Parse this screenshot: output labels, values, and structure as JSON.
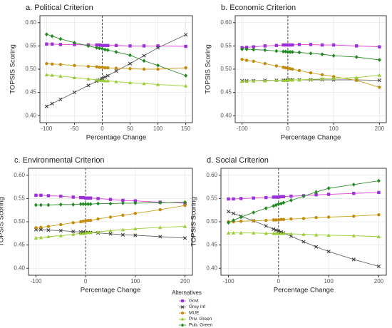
{
  "chart_data": [
    {
      "type": "line",
      "title": "a. Political Criterion",
      "x_label": "Percentage Change",
      "y_label": "TOPSIS Scoring",
      "x": [
        -100,
        -90,
        -75,
        -50,
        -25,
        -10,
        -5,
        0,
        5,
        10,
        25,
        50,
        75,
        100,
        150
      ],
      "xlim": [
        -112,
        162
      ],
      "xticks": [
        -100,
        -50,
        0,
        50,
        100,
        150
      ],
      "ylim": [
        0.385,
        0.615
      ],
      "yticks": [
        {
          "value": 0.4,
          "label": "0.40"
        },
        {
          "value": 0.45,
          "label": "0.45"
        },
        {
          "value": 0.5,
          "label": "0.50"
        },
        {
          "value": 0.55,
          "label": "0.55"
        },
        {
          "value": 0.6,
          "label": "0.60"
        }
      ],
      "grid": true,
      "vline": 0,
      "series": [
        {
          "values": [
            0.554,
            0.554,
            0.553,
            0.553,
            0.552,
            0.552,
            0.552,
            0.551,
            0.551,
            0.551,
            0.551,
            0.55,
            0.55,
            0.55,
            0.549
          ]
        },
        {
          "values": [
            0.42,
            0.426,
            0.435,
            0.45,
            0.465,
            0.474,
            0.477,
            0.48,
            0.483,
            0.486,
            0.496,
            0.512,
            0.529,
            0.546,
            0.574
          ]
        },
        {
          "values": [
            0.512,
            0.511,
            0.51,
            0.508,
            0.506,
            0.505,
            0.504,
            0.504,
            0.503,
            0.503,
            0.502,
            0.501,
            0.5,
            0.5,
            0.503
          ]
        },
        {
          "values": [
            0.488,
            0.487,
            0.485,
            0.482,
            0.479,
            0.477,
            0.476,
            0.476,
            0.475,
            0.475,
            0.473,
            0.471,
            0.469,
            0.467,
            0.464
          ]
        },
        {
          "values": [
            0.575,
            0.571,
            0.565,
            0.557,
            0.55,
            0.546,
            0.545,
            0.544,
            0.542,
            0.541,
            0.537,
            0.53,
            0.518,
            0.508,
            0.486
          ]
        }
      ]
    },
    {
      "type": "line",
      "title": "b. Economic Criterion",
      "x_label": "Percentage Change",
      "y_label": "TOPSIS Scoring",
      "x": [
        -100,
        -90,
        -75,
        -50,
        -25,
        -10,
        -5,
        0,
        5,
        10,
        25,
        50,
        75,
        100,
        150,
        200
      ],
      "xlim": [
        -115,
        215
      ],
      "xticks": [
        -100,
        0,
        100,
        200
      ],
      "ylim": [
        0.385,
        0.615
      ],
      "yticks": [
        {
          "value": 0.4,
          "label": "0.40"
        },
        {
          "value": 0.45,
          "label": "0.45"
        },
        {
          "value": 0.5,
          "label": "0.50"
        },
        {
          "value": 0.55,
          "label": "0.55"
        },
        {
          "value": 0.6,
          "label": "0.60"
        }
      ],
      "grid": true,
      "vline": 0,
      "series": [
        {
          "values": [
            0.546,
            0.547,
            0.548,
            0.55,
            0.551,
            0.552,
            0.552,
            0.552,
            0.552,
            0.552,
            0.553,
            0.553,
            0.552,
            0.552,
            0.55,
            0.548
          ]
        },
        {
          "values": [
            0.475,
            0.475,
            0.475,
            0.476,
            0.476,
            0.476,
            0.476,
            0.477,
            0.477,
            0.477,
            0.477,
            0.477,
            0.477,
            0.477,
            0.477,
            0.476
          ]
        },
        {
          "values": [
            0.521,
            0.519,
            0.517,
            0.512,
            0.507,
            0.504,
            0.503,
            0.502,
            0.501,
            0.5,
            0.497,
            0.492,
            0.488,
            0.484,
            0.476,
            0.461
          ]
        },
        {
          "values": [
            0.474,
            0.474,
            0.475,
            0.475,
            0.476,
            0.476,
            0.476,
            0.477,
            0.477,
            0.477,
            0.477,
            0.478,
            0.479,
            0.48,
            0.482,
            0.487
          ]
        },
        {
          "values": [
            0.543,
            0.543,
            0.542,
            0.541,
            0.539,
            0.538,
            0.538,
            0.537,
            0.537,
            0.537,
            0.536,
            0.534,
            0.532,
            0.529,
            0.526,
            0.52
          ]
        }
      ]
    },
    {
      "type": "line",
      "title": "c. Environmental Criterion",
      "x_label": "Percentage Change",
      "y_label": "TOPSIS Scoring",
      "x": [
        -100,
        -90,
        -75,
        -50,
        -25,
        -10,
        -5,
        0,
        5,
        10,
        25,
        50,
        75,
        100,
        150,
        200
      ],
      "xlim": [
        -115,
        215
      ],
      "xticks": [
        -100,
        0,
        100,
        200
      ],
      "ylim": [
        0.385,
        0.615
      ],
      "yticks": [
        {
          "value": 0.4,
          "label": "0.40"
        },
        {
          "value": 0.45,
          "label": "0.45"
        },
        {
          "value": 0.5,
          "label": "0.50"
        },
        {
          "value": 0.55,
          "label": "0.55"
        },
        {
          "value": 0.6,
          "label": "0.60"
        }
      ],
      "grid": true,
      "vline": 0,
      "series": [
        {
          "values": [
            0.557,
            0.557,
            0.556,
            0.555,
            0.553,
            0.552,
            0.552,
            0.551,
            0.551,
            0.551,
            0.55,
            0.548,
            0.546,
            0.545,
            0.542,
            0.54
          ]
        },
        {
          "values": [
            0.483,
            0.483,
            0.482,
            0.481,
            0.479,
            0.478,
            0.478,
            0.477,
            0.477,
            0.477,
            0.476,
            0.474,
            0.472,
            0.471,
            0.468,
            0.465
          ]
        },
        {
          "values": [
            0.487,
            0.488,
            0.49,
            0.494,
            0.498,
            0.5,
            0.501,
            0.502,
            0.503,
            0.503,
            0.506,
            0.51,
            0.514,
            0.518,
            0.526,
            0.535
          ]
        },
        {
          "values": [
            0.465,
            0.466,
            0.468,
            0.47,
            0.473,
            0.475,
            0.475,
            0.476,
            0.477,
            0.477,
            0.478,
            0.481,
            0.483,
            0.485,
            0.488,
            0.49
          ]
        },
        {
          "values": [
            0.536,
            0.536,
            0.536,
            0.537,
            0.537,
            0.538,
            0.538,
            0.538,
            0.538,
            0.538,
            0.539,
            0.539,
            0.54,
            0.54,
            0.541,
            0.542
          ]
        }
      ]
    },
    {
      "type": "line",
      "title": "d. Social Criterion",
      "x_label": "Percentage Change",
      "y_label": "TOPSIS Scoring",
      "x": [
        -100,
        -90,
        -75,
        -50,
        -25,
        -10,
        -5,
        0,
        5,
        10,
        25,
        50,
        75,
        100,
        150,
        200
      ],
      "xlim": [
        -115,
        215
      ],
      "xticks": [
        -100,
        0,
        100,
        200
      ],
      "ylim": [
        0.385,
        0.615
      ],
      "yticks": [
        {
          "value": 0.4,
          "label": "0.40"
        },
        {
          "value": 0.45,
          "label": "0.45"
        },
        {
          "value": 0.5,
          "label": "0.50"
        },
        {
          "value": 0.55,
          "label": "0.55"
        },
        {
          "value": 0.6,
          "label": "0.60"
        }
      ],
      "grid": true,
      "vline": 0,
      "series": [
        {
          "values": [
            0.549,
            0.549,
            0.55,
            0.551,
            0.552,
            0.553,
            0.553,
            0.553,
            0.554,
            0.554,
            0.555,
            0.556,
            0.558,
            0.559,
            0.561,
            0.563
          ]
        },
        {
          "values": [
            0.522,
            0.518,
            0.512,
            0.502,
            0.491,
            0.484,
            0.482,
            0.48,
            0.478,
            0.476,
            0.469,
            0.457,
            0.446,
            0.436,
            0.419,
            0.404
          ]
        },
        {
          "values": [
            0.5,
            0.5,
            0.501,
            0.502,
            0.503,
            0.504,
            0.504,
            0.504,
            0.505,
            0.505,
            0.506,
            0.507,
            0.509,
            0.51,
            0.512,
            0.515
          ]
        },
        {
          "values": [
            0.476,
            0.476,
            0.476,
            0.476,
            0.475,
            0.475,
            0.475,
            0.475,
            0.475,
            0.475,
            0.474,
            0.473,
            0.472,
            0.471,
            0.47,
            0.468
          ]
        },
        {
          "values": [
            0.498,
            0.503,
            0.51,
            0.52,
            0.529,
            0.534,
            0.536,
            0.538,
            0.539,
            0.541,
            0.546,
            0.555,
            0.564,
            0.572,
            0.58,
            0.588
          ]
        }
      ]
    }
  ],
  "legend": {
    "title": "Alternatives",
    "names": [
      "Govt",
      "Grey Inf",
      "MUE",
      "Priv. Green",
      "Pub. Green"
    ],
    "colors": [
      "#9b30d9",
      "#333333",
      "#c48a0a",
      "#9acd32",
      "#1f8a1f"
    ],
    "line_colors": [
      "#e040e0",
      "#666666",
      "#c9a21a",
      "#9acd32",
      "#2e8b2e"
    ],
    "markers": [
      "square",
      "cross",
      "circle",
      "triangle",
      "diamond"
    ]
  }
}
